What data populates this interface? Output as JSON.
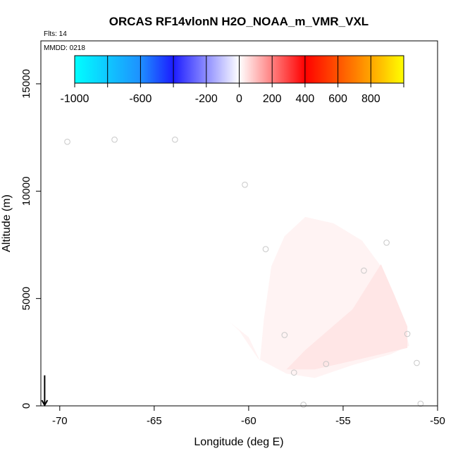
{
  "chart_data": {
    "type": "scatter",
    "title": "ORCAS RF14vlonN H2O_NOAA_m_VMR_VXL",
    "flights_label": "Flts: 14",
    "date_label": "MMDD: 0218",
    "xlabel": "Longitude (deg E)",
    "ylabel": "Altitude (m)",
    "xlim": [
      -71,
      -50
    ],
    "ylim": [
      0,
      17000
    ],
    "x_ticks": [
      -70,
      -65,
      -60,
      -55,
      -50
    ],
    "y_ticks": [
      0,
      5000,
      10000,
      15000
    ],
    "colorbar": {
      "range": [
        -1000,
        1000
      ],
      "ticks": [
        -1000,
        -600,
        -200,
        0,
        200,
        400,
        600,
        800
      ],
      "tick_labels": [
        "-1000",
        "-600",
        "-200",
        "0",
        "200",
        "400",
        "600",
        "800"
      ],
      "divisions": [
        -1000,
        -800,
        -600,
        -400,
        -200,
        0,
        200,
        400,
        600,
        800,
        1000
      ],
      "colors": [
        "#00ffff",
        "#1e90ff",
        "#1c1cff",
        "#ffffff",
        "#ff0000",
        "#ffa500",
        "#ffff00"
      ],
      "color_stops": [
        -1000,
        -600,
        -400,
        0,
        400,
        800,
        1000
      ]
    },
    "shaded_region": {
      "outline": [
        [
          -59.4,
          2100
        ],
        [
          -59.2,
          4000
        ],
        [
          -58.8,
          6500
        ],
        [
          -58.1,
          7900
        ],
        [
          -57.0,
          8800
        ],
        [
          -55.5,
          8500
        ],
        [
          -54.0,
          7700
        ],
        [
          -53.0,
          6500
        ],
        [
          -52.5,
          5000
        ],
        [
          -51.8,
          3800
        ],
        [
          -51.5,
          2800
        ],
        [
          -52.5,
          2400
        ],
        [
          -54.5,
          1900
        ],
        [
          -56.5,
          1300
        ],
        [
          -58.0,
          1500
        ],
        [
          -59.5,
          2200
        ],
        [
          -60.5,
          3500
        ],
        [
          -61.0,
          3900
        ],
        [
          -60.0,
          3200
        ]
      ],
      "core": [
        [
          -57.0,
          2600
        ],
        [
          -54.5,
          4500
        ],
        [
          -53.0,
          6600
        ],
        [
          -52.3,
          5200
        ],
        [
          -51.6,
          3700
        ],
        [
          -51.6,
          2700
        ],
        [
          -54.0,
          2200
        ],
        [
          -56.5,
          1700
        ],
        [
          -58.0,
          1700
        ]
      ],
      "value_range": [
        0,
        100
      ]
    },
    "points": [
      {
        "x": -69.6,
        "y": 12300
      },
      {
        "x": -67.1,
        "y": 12400
      },
      {
        "x": -63.9,
        "y": 12400
      },
      {
        "x": -60.2,
        "y": 10300
      },
      {
        "x": -59.1,
        "y": 7300
      },
      {
        "x": -58.1,
        "y": 3300
      },
      {
        "x": -57.6,
        "y": 1550
      },
      {
        "x": -57.1,
        "y": 50
      },
      {
        "x": -55.9,
        "y": 1950
      },
      {
        "x": -53.9,
        "y": 6300
      },
      {
        "x": -52.7,
        "y": 7600
      },
      {
        "x": -51.6,
        "y": 3350
      },
      {
        "x": -51.1,
        "y": 2000
      },
      {
        "x": -50.9,
        "y": 100
      }
    ],
    "arrow": {
      "x": -70.8,
      "y_top": 700,
      "y_bottom": 0
    }
  }
}
